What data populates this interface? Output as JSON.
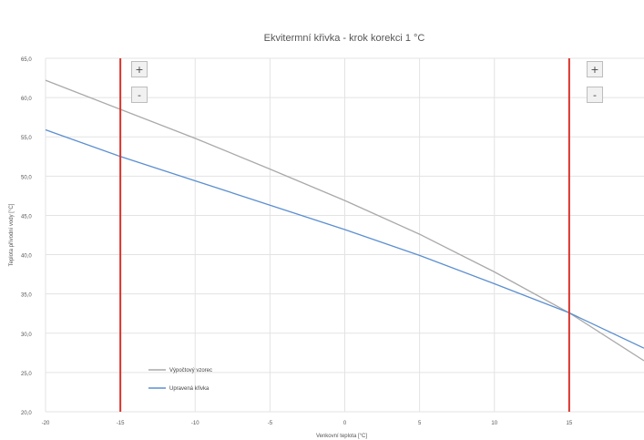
{
  "chart_data": {
    "type": "line",
    "title": "Ekvitermní křivka - krok korekci 1 °C",
    "xlabel": "Venkovní teplota [°C]",
    "ylabel": "Teplota přívodní vody [°C]",
    "xlim": [
      -20,
      20
    ],
    "ylim": [
      20,
      65
    ],
    "x_ticks": [
      -20,
      -15,
      -10,
      -5,
      0,
      5,
      10,
      15
    ],
    "x_tick_labels": [
      "-20",
      "-15",
      "-10",
      "-5",
      "0",
      "5",
      "10",
      "15"
    ],
    "y_ticks": [
      20,
      25,
      30,
      35,
      40,
      45,
      50,
      55,
      60,
      65
    ],
    "y_tick_labels": [
      "20,0",
      "25,0",
      "30,0",
      "35,0",
      "40,0",
      "45,0",
      "50,0",
      "55,0",
      "60,0",
      "65,0"
    ],
    "grid": true,
    "legend_position": "bottom-left",
    "series": [
      {
        "name": "Výpočtový vzorec",
        "color": "#a9a9a9",
        "x": [
          -20,
          -15,
          -10,
          -5,
          0,
          5,
          10,
          15,
          20
        ],
        "y": [
          62.2,
          58.5,
          54.8,
          50.9,
          46.9,
          42.6,
          37.8,
          32.6,
          26.5
        ]
      },
      {
        "name": "Upravená křivka",
        "color": "#5b8fd0",
        "x": [
          -20,
          -15,
          -10,
          -5,
          0,
          5,
          10,
          15,
          20
        ],
        "y": [
          55.9,
          52.5,
          49.4,
          46.3,
          43.2,
          39.9,
          36.3,
          32.6,
          28.1
        ]
      }
    ],
    "markers": [
      {
        "x": -15,
        "color": "#d9342b"
      },
      {
        "x": 15,
        "color": "#d9342b"
      }
    ]
  },
  "controls": {
    "left": {
      "plus": "+",
      "minus": "-"
    },
    "right": {
      "plus": "+",
      "minus": "-"
    }
  }
}
